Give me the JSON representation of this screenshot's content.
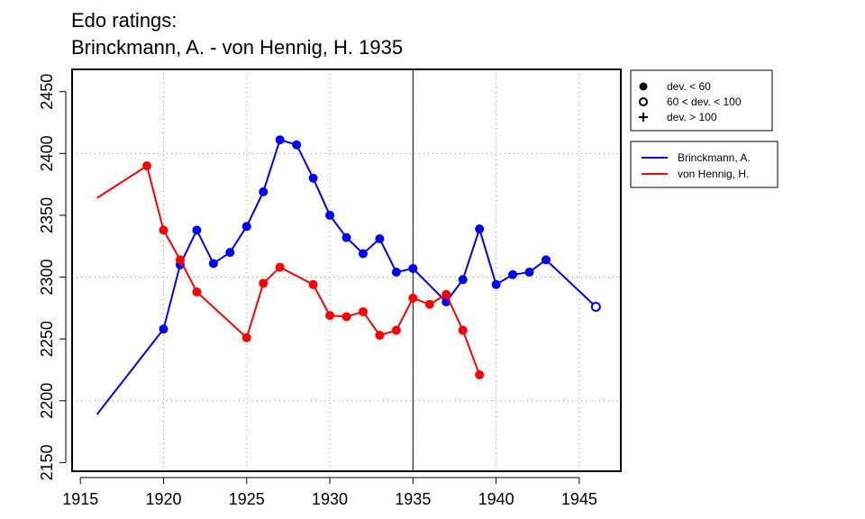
{
  "title_line1": "Edo ratings:",
  "title_line2": "Brinckmann, A. - von Hennig, H. 1935",
  "chart_data": {
    "type": "line",
    "x_ticks": [
      1915,
      1920,
      1925,
      1930,
      1935,
      1940,
      1945
    ],
    "y_ticks": [
      2150,
      2200,
      2250,
      2300,
      2350,
      2400,
      2450
    ],
    "xlim": [
      1914.5,
      1947.5
    ],
    "ylim": [
      2143,
      2468
    ],
    "grid": true,
    "grid_x": [
      1920,
      1925,
      1930,
      1935,
      1940,
      1945
    ],
    "grid_y": [
      2200,
      2300,
      2400
    ],
    "reference_line_x": 1935,
    "legend_placement": "top-right, outside plot",
    "deviation_legend": [
      {
        "symbol": "●",
        "label": "dev. < 60"
      },
      {
        "symbol": "○",
        "label": "60 < dev. < 100"
      },
      {
        "symbol": "+",
        "label": "dev. > 100"
      }
    ],
    "series": [
      {
        "name": "Brinckmann, A.",
        "color": "#0000ff",
        "points": [
          {
            "x": 1916,
            "y": 2189,
            "marker": "none"
          },
          {
            "x": 1920,
            "y": 2258,
            "marker": "filled"
          },
          {
            "x": 1921,
            "y": 2310,
            "marker": "filled"
          },
          {
            "x": 1922,
            "y": 2338,
            "marker": "filled"
          },
          {
            "x": 1923,
            "y": 2311,
            "marker": "filled"
          },
          {
            "x": 1924,
            "y": 2320,
            "marker": "filled"
          },
          {
            "x": 1925,
            "y": 2341,
            "marker": "filled"
          },
          {
            "x": 1926,
            "y": 2369,
            "marker": "filled"
          },
          {
            "x": 1927,
            "y": 2411,
            "marker": "filled"
          },
          {
            "x": 1928,
            "y": 2407,
            "marker": "filled"
          },
          {
            "x": 1929,
            "y": 2380,
            "marker": "filled"
          },
          {
            "x": 1930,
            "y": 2350,
            "marker": "filled"
          },
          {
            "x": 1931,
            "y": 2332,
            "marker": "filled"
          },
          {
            "x": 1932,
            "y": 2319,
            "marker": "filled"
          },
          {
            "x": 1933,
            "y": 2331,
            "marker": "filled"
          },
          {
            "x": 1934,
            "y": 2304,
            "marker": "filled"
          },
          {
            "x": 1935,
            "y": 2307,
            "marker": "filled"
          },
          {
            "x": 1937,
            "y": 2280,
            "marker": "filled"
          },
          {
            "x": 1938,
            "y": 2298,
            "marker": "filled"
          },
          {
            "x": 1939,
            "y": 2339,
            "marker": "filled"
          },
          {
            "x": 1940,
            "y": 2294,
            "marker": "filled"
          },
          {
            "x": 1941,
            "y": 2302,
            "marker": "filled"
          },
          {
            "x": 1942,
            "y": 2304,
            "marker": "filled"
          },
          {
            "x": 1943,
            "y": 2314,
            "marker": "filled"
          },
          {
            "x": 1946,
            "y": 2276,
            "marker": "open"
          }
        ]
      },
      {
        "name": "von Hennig, H.",
        "color": "#ff0000",
        "points": [
          {
            "x": 1916,
            "y": 2364,
            "marker": "none"
          },
          {
            "x": 1919,
            "y": 2390,
            "marker": "filled"
          },
          {
            "x": 1920,
            "y": 2338,
            "marker": "filled"
          },
          {
            "x": 1921,
            "y": 2314,
            "marker": "filled"
          },
          {
            "x": 1922,
            "y": 2288,
            "marker": "filled"
          },
          {
            "x": 1925,
            "y": 2251,
            "marker": "filled"
          },
          {
            "x": 1926,
            "y": 2295,
            "marker": "filled"
          },
          {
            "x": 1927,
            "y": 2308,
            "marker": "filled"
          },
          {
            "x": 1929,
            "y": 2294,
            "marker": "filled"
          },
          {
            "x": 1930,
            "y": 2269,
            "marker": "filled"
          },
          {
            "x": 1931,
            "y": 2268,
            "marker": "filled"
          },
          {
            "x": 1932,
            "y": 2272,
            "marker": "filled"
          },
          {
            "x": 1933,
            "y": 2253,
            "marker": "filled"
          },
          {
            "x": 1934,
            "y": 2257,
            "marker": "filled"
          },
          {
            "x": 1935,
            "y": 2283,
            "marker": "filled"
          },
          {
            "x": 1936,
            "y": 2278,
            "marker": "filled"
          },
          {
            "x": 1937,
            "y": 2286,
            "marker": "filled"
          },
          {
            "x": 1938,
            "y": 2257,
            "marker": "filled"
          },
          {
            "x": 1939,
            "y": 2221,
            "marker": "filled"
          }
        ]
      }
    ]
  }
}
